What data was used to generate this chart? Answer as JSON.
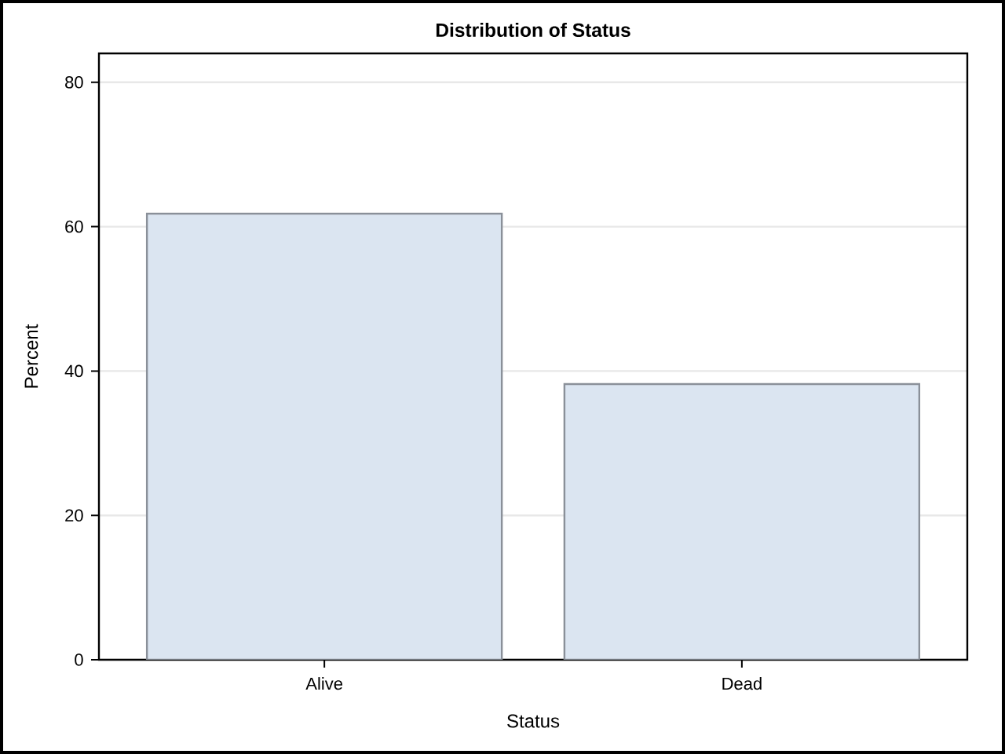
{
  "chart_data": {
    "type": "bar",
    "title": "Distribution of Status",
    "xlabel": "Status",
    "ylabel": "Percent",
    "categories": [
      "Alive",
      "Dead"
    ],
    "values": [
      61.8,
      38.2
    ],
    "color": "#dbe5f1",
    "ylim": [
      0,
      84
    ],
    "yticks": [
      0,
      20,
      40,
      60,
      80
    ],
    "grid": "y"
  }
}
